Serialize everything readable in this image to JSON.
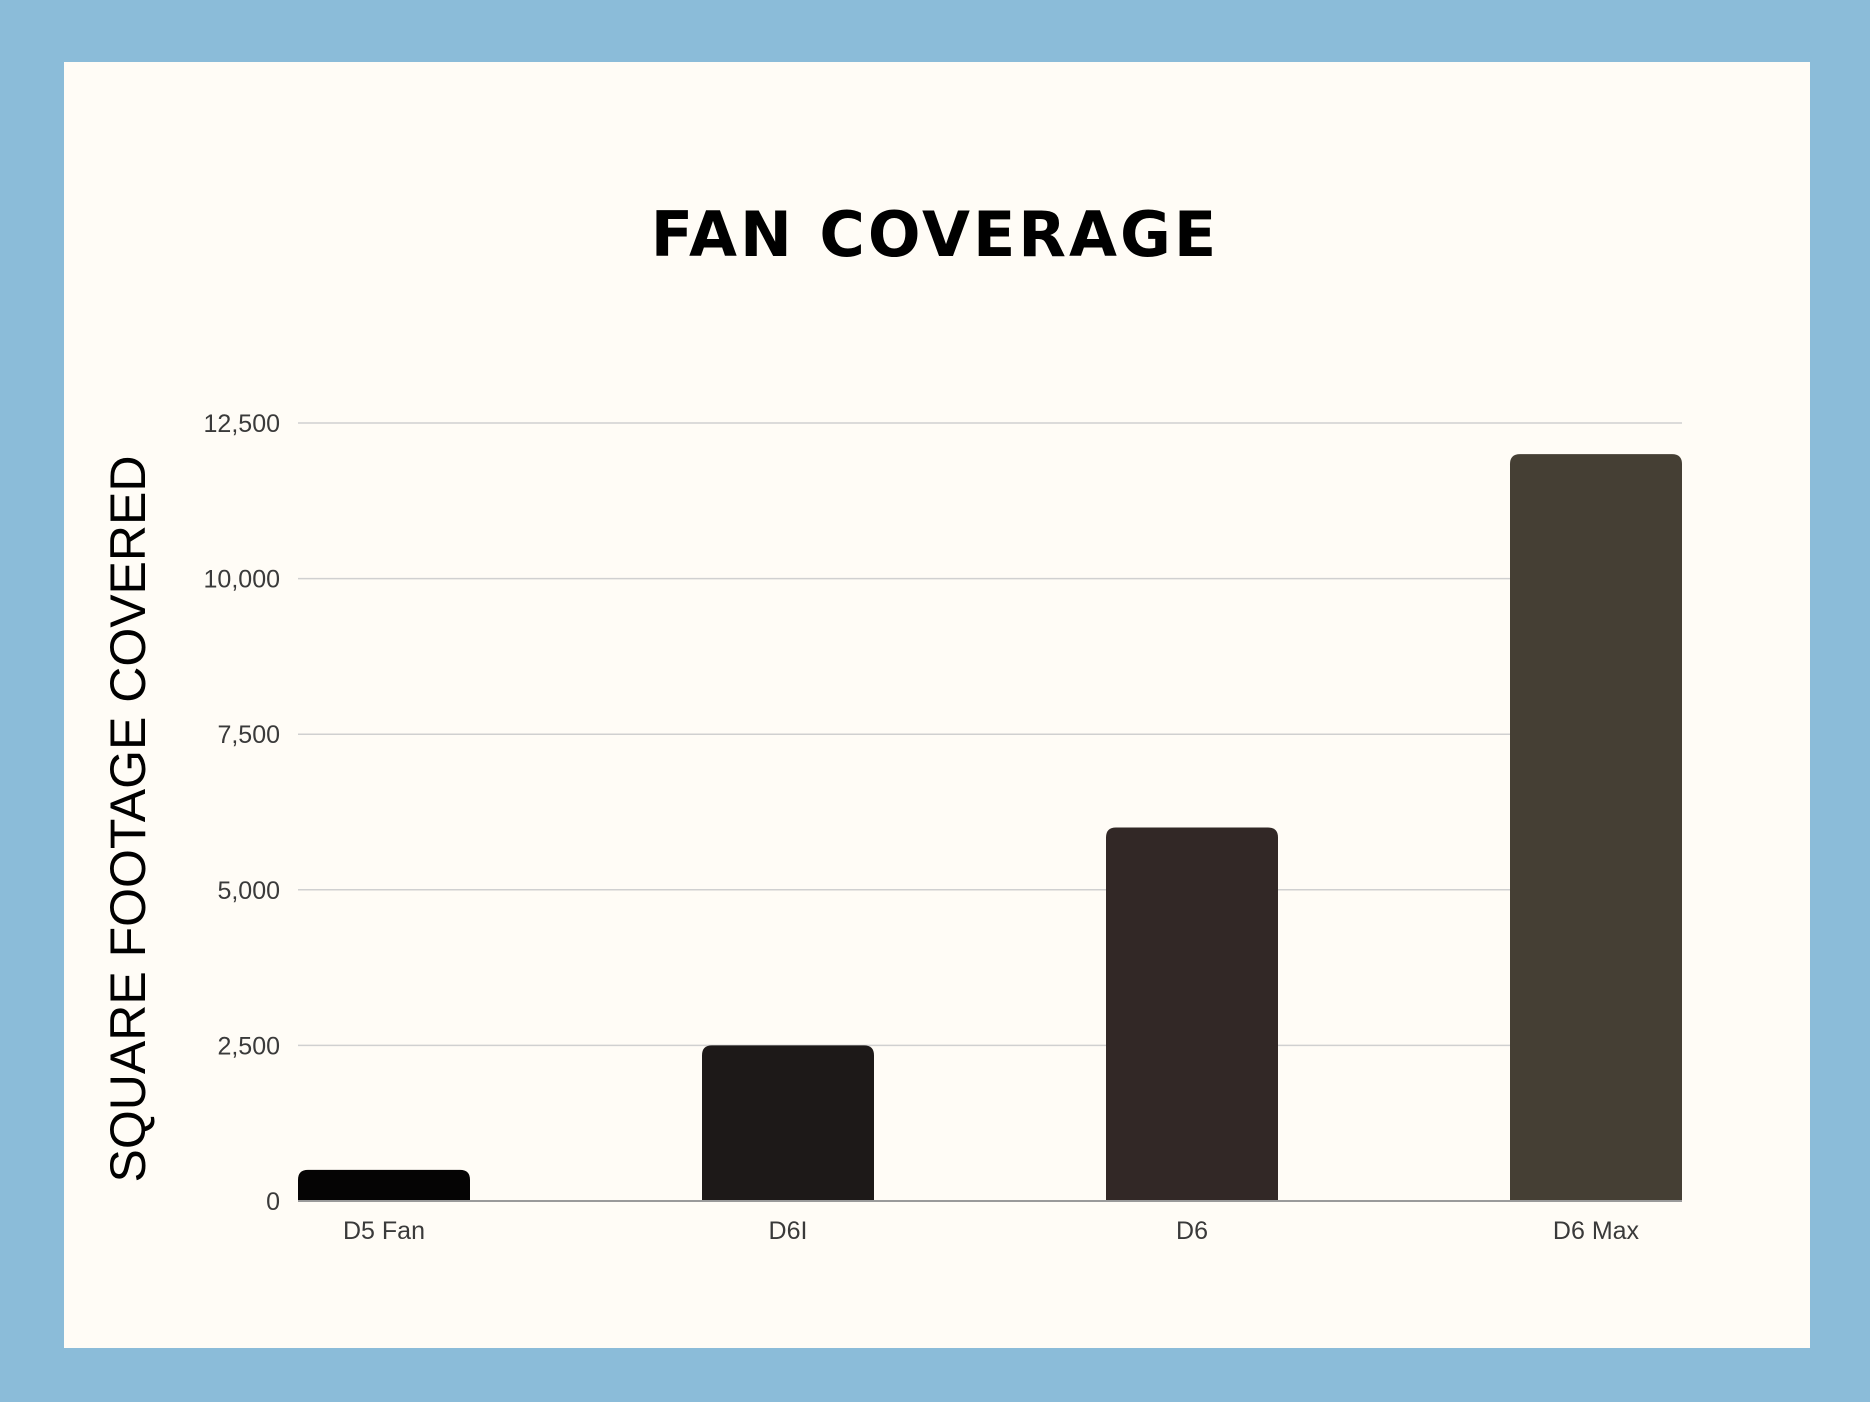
{
  "chart_data": {
    "type": "bar",
    "title": "FAN COVERAGE",
    "xlabel": "",
    "ylabel": "SQUARE FOOTAGE COVERED",
    "categories": [
      "D5 Fan",
      "D6I",
      "D6",
      "D6 Max"
    ],
    "values": [
      500,
      2500,
      6000,
      12000
    ],
    "ylim": [
      0,
      12500
    ],
    "yticks": [
      0,
      2500,
      5000,
      7500,
      10000,
      12500
    ],
    "ytick_labels": [
      "0",
      "2,500",
      "5,000",
      "7,500",
      "10,000",
      "12,500"
    ],
    "grid": true,
    "legend": "none",
    "bar_colors": [
      "#050404",
      "#1d1918",
      "#322826",
      "#453f34"
    ],
    "grid_color": "#d0d0d0",
    "axis_color": "#9a9a9a",
    "tick_label_color": "#3a3a3a",
    "frame_color": "#8bbcd9",
    "background_color": "#fffcf6"
  }
}
